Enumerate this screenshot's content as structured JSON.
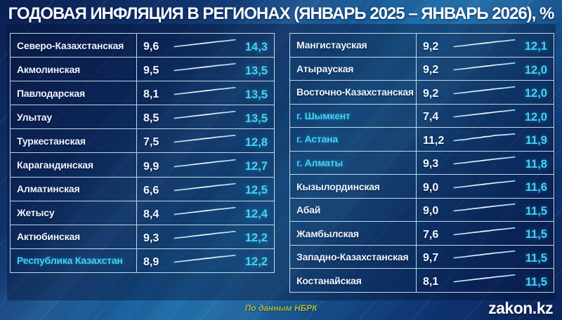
{
  "title": "ГОДОВАЯ ИНФЛЯЦИЯ В РЕГИОНАХ (ЯНВАРЬ 2025 – ЯНВАРЬ 2026), %",
  "footer": {
    "source": "По данным НБРК",
    "brand": "zakon.kz"
  },
  "colors": {
    "accent_cyan": "#41d4f5",
    "text_white": "#edf5fd",
    "source_olive": "#a9b53e",
    "table_border": "#d8eefc",
    "background_dark": "#0b1f52",
    "background_bright": "#2373ae"
  },
  "chart_data": {
    "type": "table",
    "title": "Годовая инфляция в регионах, %",
    "unit": "%",
    "period_start": "Январь 2025",
    "period_end": "Январь 2026",
    "sparkline": "line",
    "left_rows": [
      {
        "region": "Северо-Казахстанская",
        "start": "9,6",
        "end": "14,3",
        "highlight": false
      },
      {
        "region": "Акмолинская",
        "start": "9,5",
        "end": "13,5",
        "highlight": false
      },
      {
        "region": "Павлодарская",
        "start": "8,1",
        "end": "13,5",
        "highlight": false
      },
      {
        "region": "Улытау",
        "start": "8,5",
        "end": "13,5",
        "highlight": false
      },
      {
        "region": "Туркестанская",
        "start": "7,5",
        "end": "12,8",
        "highlight": false
      },
      {
        "region": "Карагандинская",
        "start": "9,9",
        "end": "12,7",
        "highlight": false
      },
      {
        "region": "Алматинская",
        "start": "6,6",
        "end": "12,5",
        "highlight": false
      },
      {
        "region": "Жетысу",
        "start": "8,4",
        "end": "12,4",
        "highlight": false
      },
      {
        "region": "Актюбинская",
        "start": "9,3",
        "end": "12,2",
        "highlight": false
      },
      {
        "region": "Республика Казахстан",
        "start": "8,9",
        "end": "12,2",
        "highlight": true
      }
    ],
    "right_rows": [
      {
        "region": "Мангистауская",
        "start": "9,2",
        "end": "12,1",
        "highlight": false
      },
      {
        "region": "Атырауская",
        "start": "9,2",
        "end": "12,0",
        "highlight": false
      },
      {
        "region": "Восточно-Казахстанская",
        "start": "9,2",
        "end": "12,0",
        "highlight": false
      },
      {
        "region": "г. Шымкент",
        "start": "7,4",
        "end": "12,0",
        "highlight": true
      },
      {
        "region": "г. Астана",
        "start": "11,2",
        "end": "11,9",
        "highlight": true
      },
      {
        "region": "г. Алматы",
        "start": "9,3",
        "end": "11,8",
        "highlight": true
      },
      {
        "region": "Кызылординская",
        "start": "9,0",
        "end": "11,6",
        "highlight": false
      },
      {
        "region": "Абай",
        "start": "9,0",
        "end": "11,5",
        "highlight": false
      },
      {
        "region": "Жамбылская",
        "start": "7,6",
        "end": "11,5",
        "highlight": false
      },
      {
        "region": "Западно-Казахстанская",
        "start": "9,7",
        "end": "11,5",
        "highlight": false
      },
      {
        "region": "Костанайская",
        "start": "8,1",
        "end": "11,5",
        "highlight": false
      }
    ]
  }
}
